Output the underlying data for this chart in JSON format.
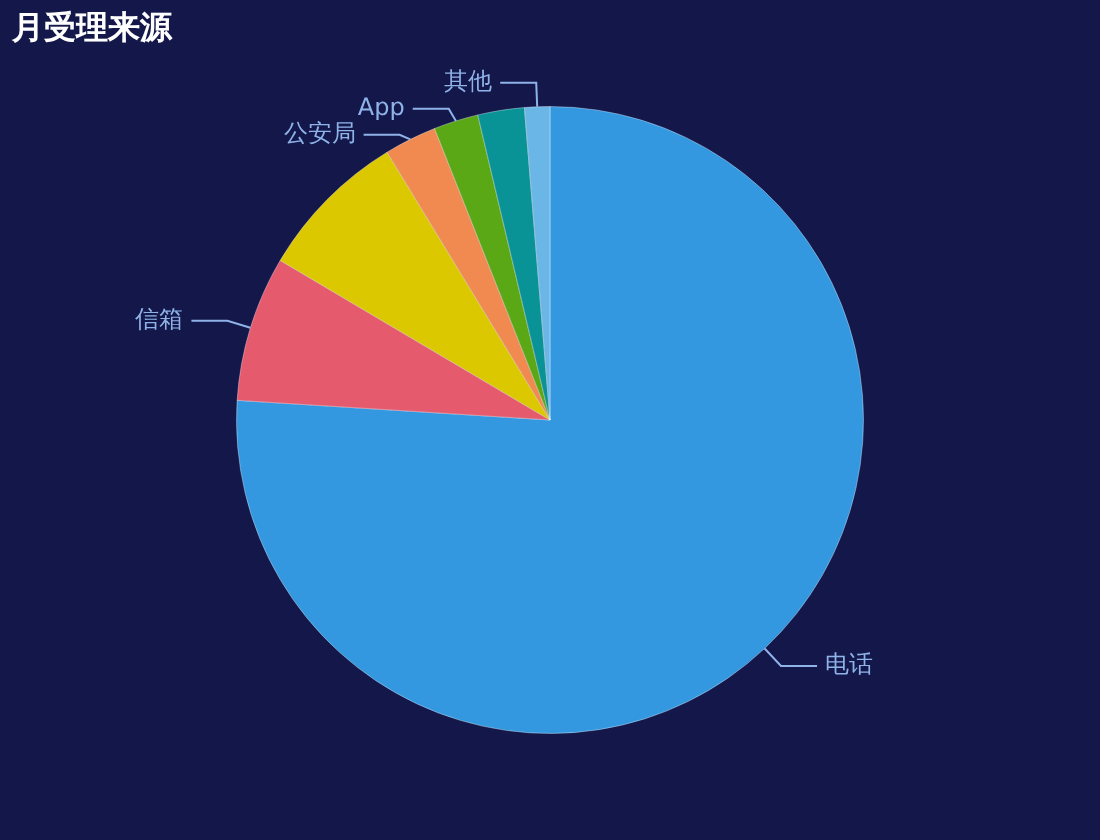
{
  "chart_data": {
    "type": "pie",
    "title": "月受理来源",
    "categories": [
      "电话",
      "信箱",
      null,
      "公安局",
      "App",
      null,
      "其他"
    ],
    "values": [
      76,
      7.5,
      7.8,
      2.7,
      2.3,
      2.4,
      1.3
    ],
    "colors": [
      "#3498e0",
      "#e65a6e",
      "#dcc800",
      "#f08a50",
      "#5aa816",
      "#0a9396",
      "#6ab6e6"
    ],
    "legend": false
  }
}
